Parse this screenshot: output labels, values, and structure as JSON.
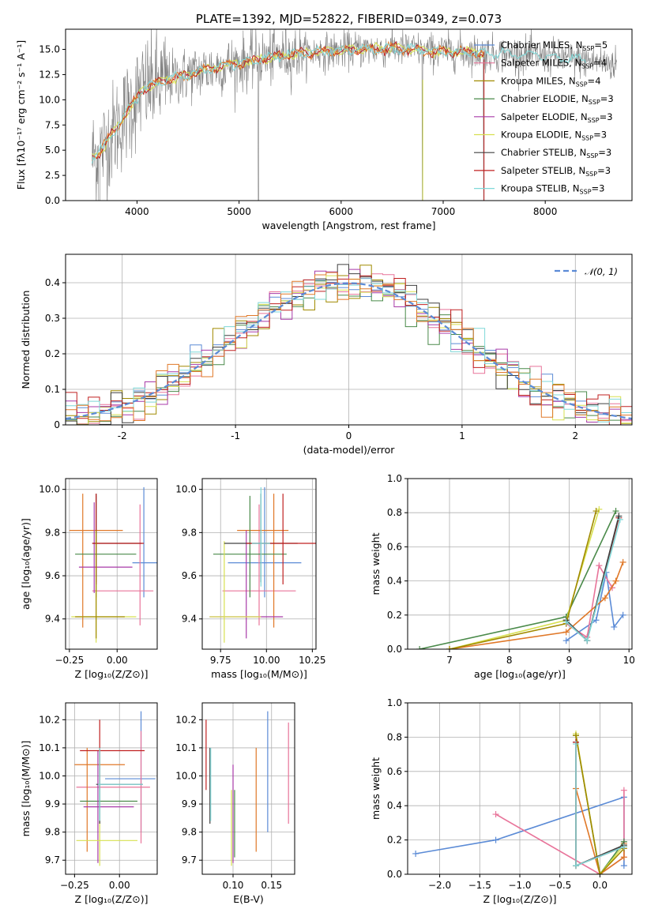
{
  "colors": {
    "Chabrier MILES": "#5b8bd6",
    "Salpeter MILES": "#e8749a",
    "Kroupa MILES": "#a08a00",
    "Chabrier ELODIE": "#4a8a4a",
    "Salpeter ELODIE": "#a83aa8",
    "Kroupa ELODIE": "#d7e050",
    "Chabrier STELIB": "#404040",
    "Salpeter STELIB": "#c02020",
    "Kroupa STELIB": "#7fd8d8",
    "data": "#808080",
    "orange": "#e07828"
  },
  "chart_data": [
    {
      "id": "spectrum",
      "type": "line",
      "title": "PLATE=1392, MJD=52822, FIBERID=0349, z=0.073",
      "xlabel": "wavelength [Angstrom, rest frame]",
      "ylabel": "Flux [fλ10⁻¹⁷ erg cm⁻² s⁻¹ A⁻¹]",
      "xlim": [
        3300,
        8850
      ],
      "ylim": [
        0,
        17
      ],
      "xticks": [
        4000,
        5000,
        6000,
        7000,
        8000
      ],
      "yticks": [
        0.0,
        2.5,
        5.0,
        7.5,
        10.0,
        12.5,
        15.0
      ],
      "legend_loc": "upper right",
      "legend": [
        {
          "name": "Chabrier MILES",
          "nssp": "5"
        },
        {
          "name": "Salpeter MILES",
          "nssp": "4"
        },
        {
          "name": "Kroupa MILES",
          "nssp": "4"
        },
        {
          "name": "Chabrier ELODIE",
          "nssp": "3"
        },
        {
          "name": "Salpeter ELODIE",
          "nssp": "3"
        },
        {
          "name": "Kroupa ELODIE",
          "nssp": "3"
        },
        {
          "name": "Chabrier STELIB",
          "nssp": "3"
        },
        {
          "name": "Salpeter STELIB",
          "nssp": "3"
        },
        {
          "name": "Kroupa STELIB",
          "nssp": "3"
        }
      ],
      "continuum_x": [
        3550,
        3650,
        3750,
        3850,
        3950,
        4050,
        4150,
        4300,
        4500,
        4700,
        4900,
        5100,
        5300,
        5500,
        5700,
        5900,
        6100,
        6300,
        6500,
        6700,
        6900,
        7100,
        7300,
        7500,
        7700,
        7900,
        8100,
        8300,
        8500,
        8700
      ],
      "continuum_y": [
        4.2,
        5.0,
        6.5,
        8.0,
        9.5,
        11.0,
        11.5,
        12.0,
        12.5,
        13.0,
        13.5,
        13.8,
        14.2,
        14.5,
        14.7,
        14.8,
        15.0,
        15.0,
        15.1,
        15.0,
        14.8,
        14.8,
        14.7,
        14.6,
        14.5,
        14.4,
        14.2,
        14.0,
        13.8,
        13.5
      ]
    },
    {
      "id": "residuals",
      "type": "step",
      "xlabel": "(data-model)/error",
      "ylabel": "Normed distribution",
      "xlim": [
        -2.5,
        2.5
      ],
      "ylim": [
        0,
        0.48
      ],
      "xticks": [
        -2,
        -1,
        0,
        1,
        2
      ],
      "yticks": [
        0.0,
        0.1,
        0.2,
        0.3,
        0.4
      ],
      "legend_loc": "upper right",
      "legend_label": "𝒩(0, 1)",
      "gaussian": {
        "mu": 0,
        "sigma": 1
      }
    },
    {
      "id": "age_vs_Z",
      "type": "errorbar",
      "xlabel": "Z [log₁₀(Z/Z⊙)]",
      "ylabel": "age  [log₁₀(age/yr)]",
      "xlim": [
        -0.27,
        0.21
      ],
      "ylim": [
        9.26,
        10.05
      ],
      "xticks": [
        -0.25,
        0.0
      ],
      "xticklabels": [
        "−0.25",
        "0.00"
      ],
      "yticks": [
        9.4,
        9.6,
        9.8,
        10.0
      ],
      "series": [
        {
          "name": "Chabrier MILES",
          "x": 0.14,
          "xerr": [
            0.06,
            0.09
          ],
          "y": 9.66,
          "yerr": [
            0.16,
            0.35
          ]
        },
        {
          "name": "Salpeter MILES",
          "x": 0.12,
          "xerr": [
            0.25,
            0.07
          ],
          "y": 9.53,
          "yerr": [
            0.16,
            0.4
          ]
        },
        {
          "name": "orange",
          "x": -0.18,
          "xerr": [
            0.07,
            0.21
          ],
          "y": 9.81,
          "yerr": [
            0.45,
            0.17
          ]
        },
        {
          "name": "Chabrier ELODIE",
          "x": -0.11,
          "xerr": [
            0.11,
            0.21
          ],
          "y": 9.7,
          "yerr": [
            0.2,
            0.27
          ]
        },
        {
          "name": "Salpeter ELODIE",
          "x": -0.12,
          "xerr": [
            0.08,
            0.2
          ],
          "y": 9.64,
          "yerr": [
            0.12,
            0.3
          ]
        },
        {
          "name": "Kroupa ELODIE",
          "x": -0.11,
          "xerr": [
            0.13,
            0.21
          ],
          "y": 9.41,
          "yerr": [
            0.12,
            0.35
          ]
        },
        {
          "name": "Chabrier STELIB",
          "x": -0.11,
          "xerr": [
            0.02,
            0.24
          ],
          "y": 9.75,
          "yerr": [
            0.18,
            0.23
          ]
        },
        {
          "name": "Salpeter STELIB",
          "x": -0.11,
          "xerr": [
            0.02,
            0.25
          ],
          "y": 9.75,
          "yerr": [
            0.19,
            0.23
          ]
        },
        {
          "name": "Kroupa MILES",
          "x": -0.11,
          "xerr": [
            0.11,
            0.15
          ],
          "y": 9.41,
          "yerr": [
            0.1,
            0.4
          ]
        }
      ]
    },
    {
      "id": "age_vs_mass",
      "type": "errorbar",
      "xlabel": "mass [log₁₀(M/M⊙)]",
      "ylabel": "",
      "xlim": [
        9.65,
        10.27
      ],
      "ylim": [
        9.26,
        10.05
      ],
      "xticks": [
        9.75,
        10.0,
        10.25
      ],
      "xticklabels": [
        "9.75",
        "10.00",
        "10.25"
      ],
      "yticks": [
        9.4,
        9.6,
        9.8,
        10.0
      ],
      "series": [
        {
          "name": "Chabrier MILES",
          "x": 9.99,
          "xerr": [
            0.2,
            0.2
          ],
          "y": 9.66,
          "yerr": [
            0.16,
            0.35
          ]
        },
        {
          "name": "Salpeter MILES",
          "x": 9.96,
          "xerr": [
            0.2,
            0.2
          ],
          "y": 9.53,
          "yerr": [
            0.16,
            0.4
          ]
        },
        {
          "name": "orange",
          "x": 10.04,
          "xerr": [
            0.2,
            0.08
          ],
          "y": 9.81,
          "yerr": [
            0.45,
            0.17
          ]
        },
        {
          "name": "Chabrier ELODIE",
          "x": 9.91,
          "xerr": [
            0.2,
            0.2
          ],
          "y": 9.7,
          "yerr": [
            0.2,
            0.27
          ]
        },
        {
          "name": "Salpeter ELODIE",
          "x": 9.89,
          "xerr": [
            0.2,
            0.2
          ],
          "y": 9.41,
          "yerr": [
            0.1,
            0.4
          ]
        },
        {
          "name": "Kroupa ELODIE",
          "x": 9.77,
          "xerr": [
            0.08,
            0.2
          ],
          "y": 9.41,
          "yerr": [
            0.12,
            0.35
          ]
        },
        {
          "name": "Chabrier STELIB",
          "x": 9.97,
          "xerr": [
            0.2,
            0.2
          ],
          "y": 9.75,
          "yerr": [
            0.18,
            0.23
          ]
        },
        {
          "name": "Salpeter STELIB",
          "x": 10.09,
          "xerr": [
            0.2,
            0.2
          ],
          "y": 9.75,
          "yerr": [
            0.19,
            0.23
          ]
        },
        {
          "name": "Kroupa STELIB",
          "x": 9.97,
          "xerr": [
            0.05,
            0.05
          ],
          "y": 9.75,
          "yerr": [
            0.2,
            0.26
          ]
        }
      ]
    },
    {
      "id": "weight_vs_age",
      "type": "line",
      "xlabel": "age  [log₁₀(age/yr)]",
      "ylabel": "mass weight",
      "xlim": [
        6.3,
        10.05
      ],
      "ylim": [
        0,
        1
      ],
      "xticks": [
        7,
        8,
        9,
        10
      ],
      "yticks": [
        0.0,
        0.2,
        0.4,
        0.6,
        0.8,
        1.0
      ],
      "series": [
        {
          "name": "Chabrier MILES",
          "x": [
            8.95,
            9.45,
            9.62,
            9.75,
            9.9
          ],
          "y": [
            0.05,
            0.17,
            0.45,
            0.13,
            0.2
          ]
        },
        {
          "name": "Salpeter MILES",
          "x": [
            8.95,
            9.3,
            9.5,
            9.72
          ],
          "y": [
            0.15,
            0.07,
            0.49,
            0.36
          ]
        },
        {
          "name": "orange",
          "x": [
            7.0,
            8.95,
            9.6,
            9.78,
            9.9
          ],
          "y": [
            0.0,
            0.1,
            0.3,
            0.4,
            0.51
          ]
        },
        {
          "name": "Chabrier ELODIE",
          "x": [
            6.5,
            8.95,
            9.78
          ],
          "y": [
            0.0,
            0.19,
            0.81
          ]
        },
        {
          "name": "Kroupa ELODIE",
          "x": [
            7.0,
            8.95,
            9.5
          ],
          "y": [
            0.0,
            0.17,
            0.82
          ]
        },
        {
          "name": "Kroupa MILES",
          "x": [
            7.0,
            8.95,
            9.45
          ],
          "y": [
            0.0,
            0.15,
            0.81
          ]
        },
        {
          "name": "Salpeter STELIB",
          "x": [
            8.95,
            9.3,
            9.83
          ],
          "y": [
            0.16,
            0.05,
            0.77
          ]
        },
        {
          "name": "Chabrier STELIB",
          "x": [
            8.95,
            9.3,
            9.83
          ],
          "y": [
            0.17,
            0.05,
            0.78
          ]
        },
        {
          "name": "Kroupa STELIB",
          "x": [
            8.95,
            9.3,
            9.85
          ],
          "y": [
            0.16,
            0.05,
            0.76
          ]
        }
      ]
    },
    {
      "id": "mass_vs_Z",
      "type": "errorbar",
      "xlabel": "Z [log₁₀(Z/Z⊙)]",
      "ylabel": "mass [log₁₀(M/M⊙)]",
      "xlim": [
        -0.3,
        0.21
      ],
      "ylim": [
        9.65,
        10.26
      ],
      "xticks": [
        -0.25,
        0.0
      ],
      "xticklabels": [
        "−0.25",
        "0.00"
      ],
      "yticks": [
        9.7,
        9.8,
        9.9,
        10.0,
        10.1,
        10.2
      ],
      "series": [
        {
          "name": "Chabrier MILES",
          "x": 0.12,
          "xerr": [
            0.2,
            0.08
          ],
          "y": 9.99,
          "yerr": [
            0.19,
            0.24
          ]
        },
        {
          "name": "Salpeter MILES",
          "x": 0.12,
          "xerr": [
            0.36,
            0.05
          ],
          "y": 9.96,
          "yerr": [
            0.2,
            0.2
          ]
        },
        {
          "name": "orange",
          "x": -0.18,
          "xerr": [
            0.07,
            0.21
          ],
          "y": 10.04,
          "yerr": [
            0.31,
            0.06
          ]
        },
        {
          "name": "Chabrier ELODIE",
          "x": -0.11,
          "xerr": [
            0.11,
            0.21
          ],
          "y": 9.91,
          "yerr": [
            0.08,
            0.19
          ]
        },
        {
          "name": "Salpeter ELODIE",
          "x": -0.12,
          "xerr": [
            0.08,
            0.2
          ],
          "y": 9.89,
          "yerr": [
            0.2,
            0.2
          ]
        },
        {
          "name": "Kroupa ELODIE",
          "x": -0.11,
          "xerr": [
            0.13,
            0.21
          ],
          "y": 9.77,
          "yerr": [
            0.09,
            0.3
          ]
        },
        {
          "name": "Chabrier STELIB",
          "x": -0.11,
          "xerr": [
            0.02,
            0.24
          ],
          "y": 9.97,
          "yerr": [
            0.14,
            0.13
          ]
        },
        {
          "name": "Salpeter STELIB",
          "x": -0.11,
          "xerr": [
            0.11,
            0.25
          ],
          "y": 10.09,
          "yerr": [
            0.14,
            0.11
          ]
        },
        {
          "name": "Kroupa STELIB",
          "x": -0.11,
          "xerr": [
            0.01,
            0.24
          ],
          "y": 9.97,
          "yerr": [
            0.13,
            0.13
          ]
        }
      ]
    },
    {
      "id": "mass_vs_EBV",
      "type": "errorbar",
      "xlabel": "E(B-V)",
      "ylabel": "",
      "xlim": [
        0.06,
        0.18
      ],
      "ylim": [
        9.65,
        10.26
      ],
      "xticks": [
        0.1,
        0.15
      ],
      "xticklabels": [
        "0.10",
        "0.15"
      ],
      "yticks": [
        9.7,
        9.8,
        9.9,
        10.0,
        10.1,
        10.2
      ],
      "series": [
        {
          "name": "Salpeter STELIB",
          "x": 0.065,
          "xerr": [
            0,
            0
          ],
          "y": 10.09,
          "yerr": [
            0.14,
            0.11
          ]
        },
        {
          "name": "Chabrier STELIB",
          "x": 0.07,
          "xerr": [
            0,
            0
          ],
          "y": 9.97,
          "yerr": [
            0.14,
            0.13
          ]
        },
        {
          "name": "Kroupa STELIB",
          "x": 0.071,
          "xerr": [
            0,
            0
          ],
          "y": 9.97,
          "yerr": [
            0.13,
            0.13
          ]
        },
        {
          "name": "Kroupa ELODIE",
          "x": 0.098,
          "xerr": [
            0,
            0
          ],
          "y": 9.77,
          "yerr": [
            0.09,
            0.18
          ]
        },
        {
          "name": "Salpeter ELODIE",
          "x": 0.1,
          "xerr": [
            0,
            0
          ],
          "y": 9.89,
          "yerr": [
            0.2,
            0.15
          ]
        },
        {
          "name": "Chabrier ELODIE",
          "x": 0.102,
          "xerr": [
            0,
            0
          ],
          "y": 9.91,
          "yerr": [
            0.2,
            0.04
          ]
        },
        {
          "name": "orange",
          "x": 0.13,
          "xerr": [
            0,
            0
          ],
          "y": 10.04,
          "yerr": [
            0.31,
            0.06
          ]
        },
        {
          "name": "Chabrier MILES",
          "x": 0.145,
          "xerr": [
            0,
            0
          ],
          "y": 9.99,
          "yerr": [
            0.19,
            0.24
          ]
        },
        {
          "name": "Salpeter MILES",
          "x": 0.172,
          "xerr": [
            0,
            0
          ],
          "y": 9.96,
          "yerr": [
            0.13,
            0.23
          ]
        }
      ]
    },
    {
      "id": "weight_vs_Z",
      "type": "line",
      "xlabel": "Z [log₁₀(Z/Z⊙)]",
      "ylabel": "mass weight",
      "xlim": [
        -2.4,
        0.4
      ],
      "ylim": [
        0,
        1
      ],
      "xticks": [
        -2.0,
        -1.5,
        -1.0,
        -0.5,
        0.0
      ],
      "xticklabels": [
        "−2.0",
        "−1.5",
        "−1.0",
        "−0.5",
        "0.0"
      ],
      "yticks": [
        0.0,
        0.2,
        0.4,
        0.6,
        0.8,
        1.0
      ],
      "series": [
        {
          "name": "Chabrier MILES",
          "x": [
            -2.3,
            -1.3,
            0.3,
            0.3
          ],
          "y": [
            0.12,
            0.2,
            0.45,
            0.05
          ]
        },
        {
          "name": "Salpeter MILES",
          "x": [
            -1.3,
            0.0,
            0.3,
            0.3
          ],
          "y": [
            0.35,
            0.0,
            0.1,
            0.49
          ]
        },
        {
          "name": "orange",
          "x": [
            -0.3,
            -0.3,
            0.0,
            0.3,
            0.3
          ],
          "y": [
            0.05,
            0.5,
            0.0,
            0.1,
            0.18
          ]
        },
        {
          "name": "Chabrier ELODIE",
          "x": [
            -0.3,
            0.0,
            0.3
          ],
          "y": [
            0.81,
            0.0,
            0.19
          ]
        },
        {
          "name": "Kroupa ELODIE",
          "x": [
            -0.3,
            0.0,
            0.3
          ],
          "y": [
            0.82,
            0.0,
            0.17
          ]
        },
        {
          "name": "Kroupa MILES",
          "x": [
            -0.3,
            0.0,
            0.3
          ],
          "y": [
            0.81,
            0.0,
            0.15
          ]
        },
        {
          "name": "Chabrier STELIB",
          "x": [
            -0.3,
            -0.3,
            0.3
          ],
          "y": [
            0.77,
            0.05,
            0.17
          ]
        },
        {
          "name": "Salpeter STELIB",
          "x": [
            -0.3,
            -0.3,
            0.3
          ],
          "y": [
            0.77,
            0.05,
            0.16
          ]
        },
        {
          "name": "Kroupa STELIB",
          "x": [
            -0.3,
            -0.3,
            0.3
          ],
          "y": [
            0.76,
            0.05,
            0.16
          ]
        }
      ]
    }
  ]
}
